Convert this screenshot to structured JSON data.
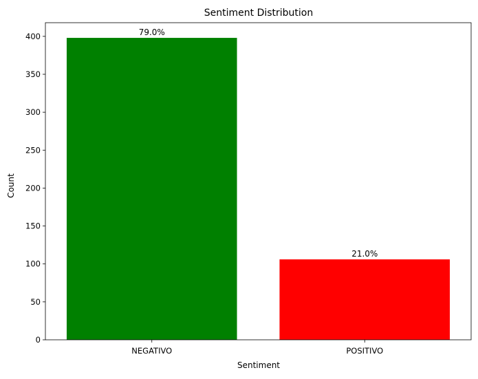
{
  "chart_data": {
    "type": "bar",
    "title": "Sentiment Distribution",
    "xlabel": "Sentiment",
    "ylabel": "Count",
    "categories": [
      "NEGATIVO",
      "POSITIVO"
    ],
    "values": [
      398,
      106
    ],
    "data_labels": [
      "79.0%",
      "21.0%"
    ],
    "colors": [
      "#008000",
      "#ff0000"
    ],
    "ylim": [
      0,
      418
    ],
    "yticks": [
      0,
      50,
      100,
      150,
      200,
      250,
      300,
      350,
      400
    ],
    "grid": false,
    "legend": "none"
  }
}
